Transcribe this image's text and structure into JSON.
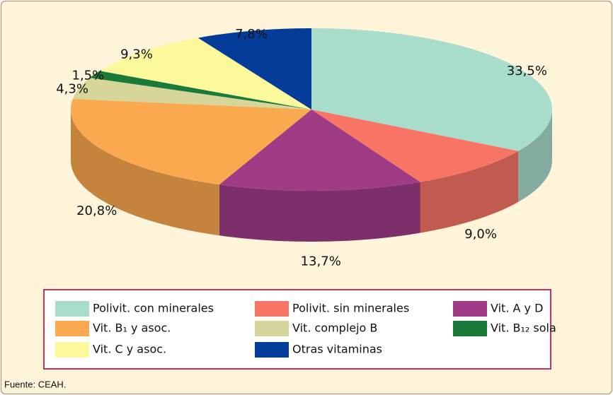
{
  "chart_data": {
    "type": "pie",
    "categories": [
      "Polivit. con minerales",
      "Polivit. sin minerales",
      "Vit. A y D",
      "Vit. B₁ y asoc.",
      "Vit. complejo B",
      "Vit. B₁₂ sola",
      "Vit. C y asoc.",
      "Otras vitaminas"
    ],
    "values": [
      33.5,
      9.0,
      13.7,
      20.8,
      4.3,
      1.5,
      9.3,
      7.8
    ],
    "value_labels": [
      "33,5%",
      "9,0%",
      "13,7%",
      "20,8%",
      "4,3%",
      "1,5%",
      "9,3%",
      "7,8%"
    ],
    "colors": [
      "#a8dccb",
      "#f87566",
      "#a03c86",
      "#fba94e",
      "#d6d59a",
      "#1a7a3a",
      "#fcf99c",
      "#043c9a"
    ],
    "legend": "bottom",
    "source": "Fuente: CEAH."
  }
}
